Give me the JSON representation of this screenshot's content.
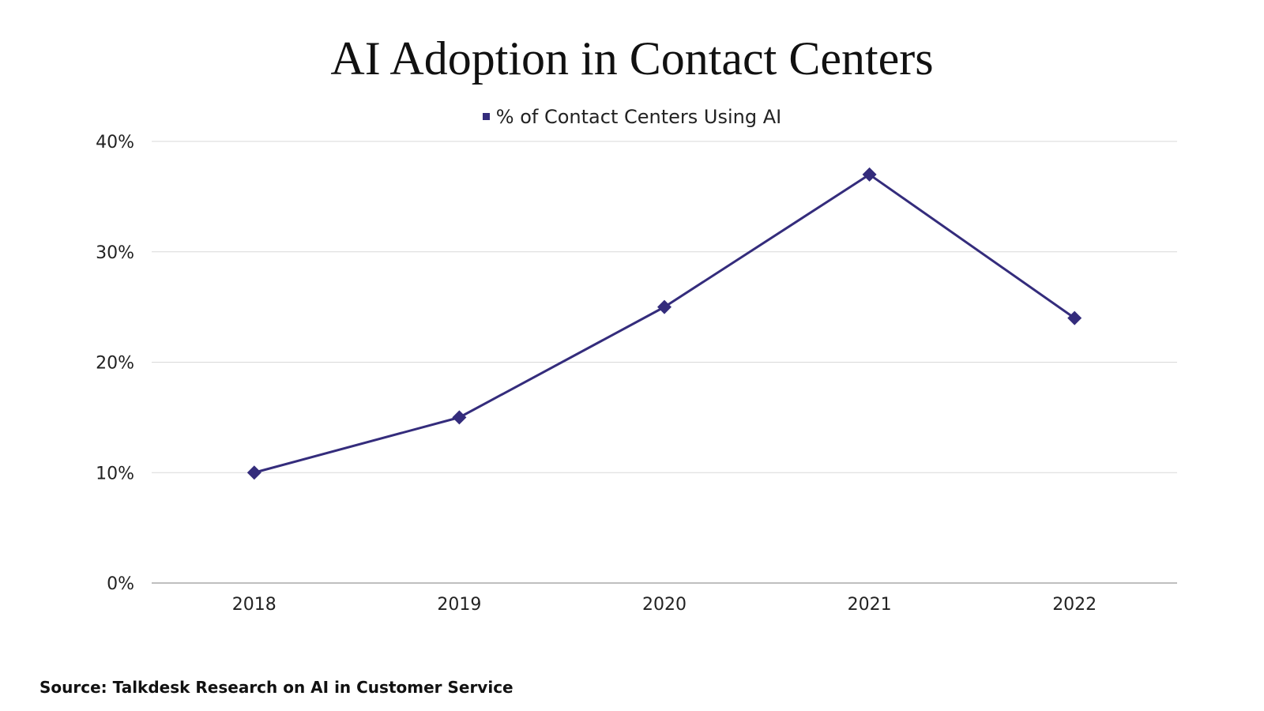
{
  "chart_data": {
    "type": "line",
    "title": "AI Adoption in Contact Centers",
    "xlabel": "",
    "ylabel": "",
    "categories": [
      "2018",
      "2019",
      "2020",
      "2021",
      "2022"
    ],
    "series": [
      {
        "name": "% of Contact Centers Using AI",
        "values": [
          10,
          15,
          25,
          37,
          24
        ],
        "color": "#342c7c",
        "marker": "diamond"
      }
    ],
    "ylim": [
      0,
      40
    ],
    "y_ticks": [
      0,
      10,
      20,
      30,
      40
    ],
    "y_tick_labels": [
      "0%",
      "10%",
      "20%",
      "30%",
      "40%"
    ],
    "grid": true,
    "gridline_color": "#d9d9d9",
    "legend_position": "top-center"
  },
  "source": "Source: Talkdesk Research on AI in Customer Service"
}
